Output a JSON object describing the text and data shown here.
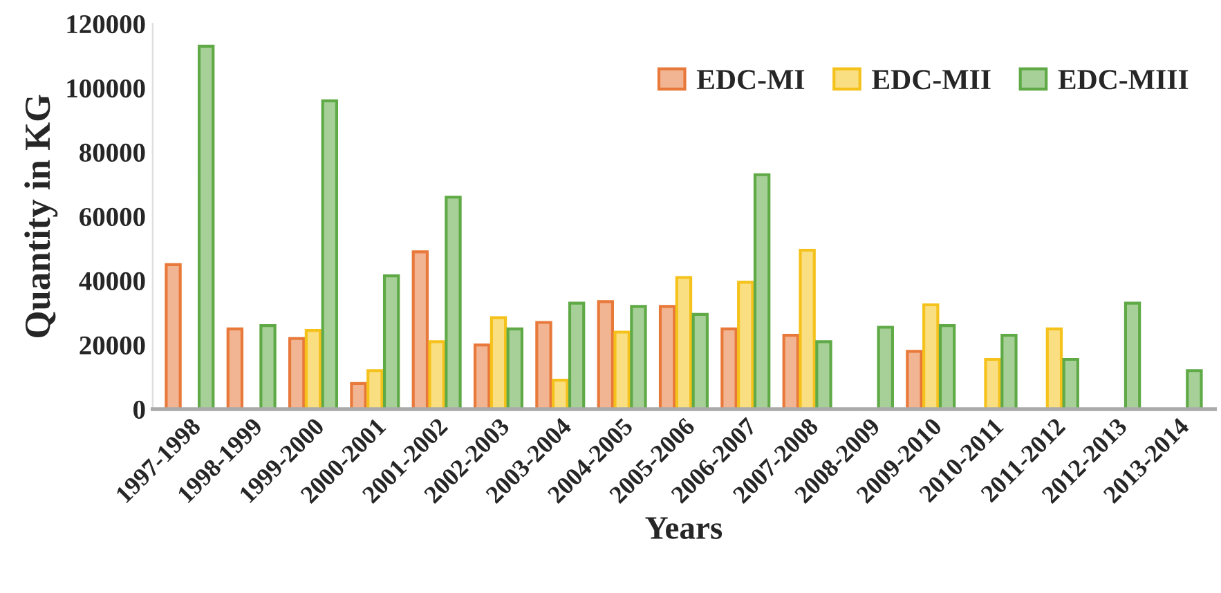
{
  "chart_data": {
    "type": "bar",
    "xlabel": "Years",
    "ylabel": "Quantity in KG",
    "categories": [
      "1997-1998",
      "1998-1999",
      "1999-2000",
      "2000-2001",
      "2001-2002",
      "2002-2003",
      "2003-2004",
      "2004-2005",
      "2005-2006",
      "2006-2007",
      "2007-2008",
      "2008-2009",
      "2009-2010",
      "2010-2011",
      "2011-2012",
      "2012-2013",
      "2013-2014"
    ],
    "series": [
      {
        "name": "EDC-MI",
        "color": "#e8793a",
        "values": [
          45000,
          25000,
          22000,
          8000,
          49000,
          20000,
          27000,
          33500,
          32000,
          25000,
          23000,
          0,
          18000,
          0,
          0,
          0,
          0
        ]
      },
      {
        "name": "EDC-MII",
        "color": "#f5c21b",
        "values": [
          0,
          0,
          24500,
          12000,
          21000,
          28500,
          9000,
          24000,
          41000,
          39500,
          49500,
          0,
          32500,
          15500,
          25000,
          0,
          0
        ]
      },
      {
        "name": "EDC-MIII",
        "color": "#5faa46",
        "values": [
          113000,
          26000,
          96000,
          41500,
          66000,
          25000,
          33000,
          32000,
          29500,
          73000,
          21000,
          25500,
          26000,
          23000,
          15500,
          33000,
          12000
        ]
      }
    ],
    "ylim": [
      0,
      120000
    ],
    "yticks": [
      0,
      20000,
      40000,
      60000,
      80000,
      100000,
      120000
    ],
    "grid": false,
    "legend": "top right"
  }
}
